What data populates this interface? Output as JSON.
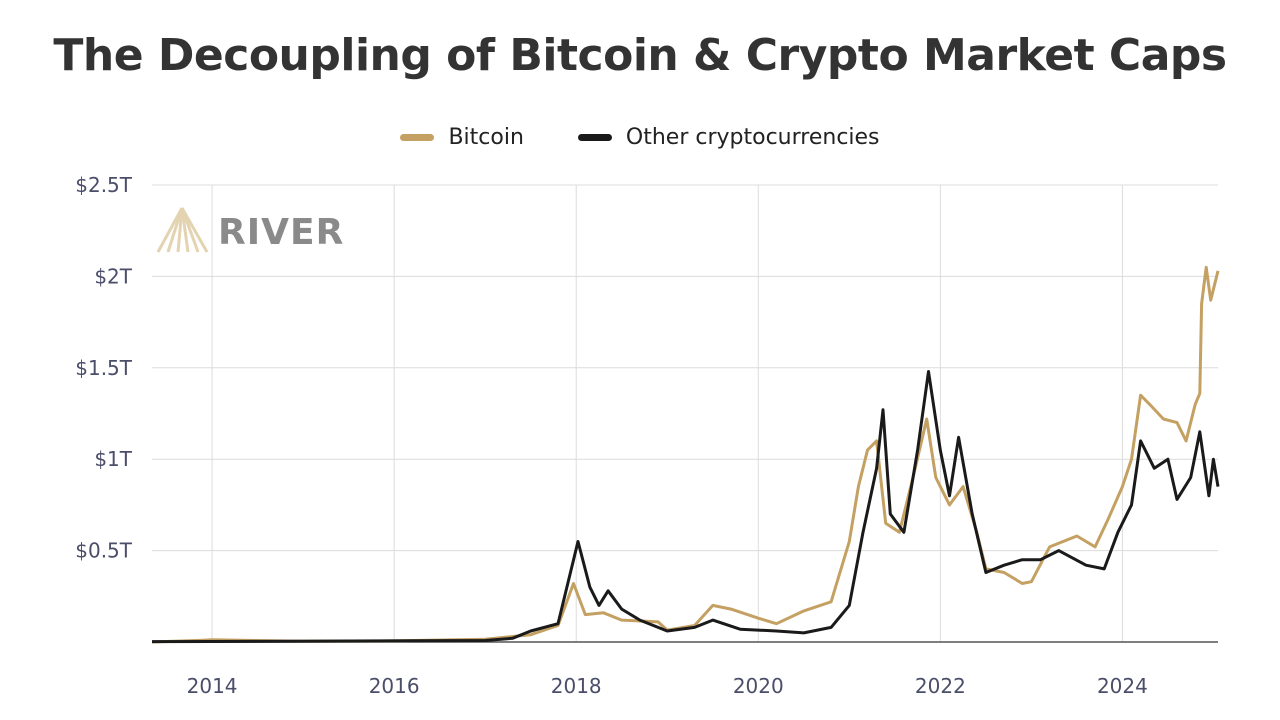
{
  "chart_data": {
    "type": "line",
    "title": "The Decoupling of Bitcoin & Crypto Market Caps",
    "xlabel": "",
    "ylabel": "",
    "xlim": [
      2013.34,
      2025.05
    ],
    "ylim": [
      0,
      2.5
    ],
    "grid": true,
    "legend_position": "top-center",
    "x_ticks": [
      2014,
      2016,
      2018,
      2020,
      2022,
      2024
    ],
    "x_tick_labels": [
      "2014",
      "2016",
      "2018",
      "2020",
      "2022",
      "2024"
    ],
    "y_ticks": [
      0.5,
      1,
      1.5,
      2,
      2.5
    ],
    "y_tick_labels": [
      "$0.5T",
      "$1T",
      "$1.5T",
      "$2T",
      "$2.5T"
    ],
    "watermark": "RIVER",
    "series": [
      {
        "name": "Bitcoin",
        "color": "#c4a062",
        "x": [
          2013.34,
          2013.9,
          2014.0,
          2015,
          2016,
          2017,
          2017.3,
          2017.5,
          2017.8,
          2017.97,
          2018.1,
          2018.3,
          2018.5,
          2018.9,
          2019.0,
          2019.3,
          2019.5,
          2019.7,
          2020.0,
          2020.2,
          2020.5,
          2020.8,
          2021.0,
          2021.1,
          2021.2,
          2021.3,
          2021.4,
          2021.55,
          2021.7,
          2021.85,
          2021.95,
          2022.1,
          2022.25,
          2022.4,
          2022.5,
          2022.7,
          2022.9,
          2023.0,
          2023.2,
          2023.5,
          2023.7,
          2023.85,
          2024.0,
          2024.1,
          2024.2,
          2024.3,
          2024.45,
          2024.6,
          2024.7,
          2024.8,
          2024.85,
          2024.87,
          2024.92,
          2024.97,
          2025.05
        ],
        "y": [
          0.0,
          0.01,
          0.012,
          0.004,
          0.006,
          0.015,
          0.03,
          0.04,
          0.09,
          0.32,
          0.15,
          0.16,
          0.12,
          0.11,
          0.065,
          0.09,
          0.2,
          0.18,
          0.13,
          0.1,
          0.17,
          0.22,
          0.55,
          0.85,
          1.05,
          1.1,
          0.65,
          0.6,
          0.9,
          1.22,
          0.9,
          0.75,
          0.85,
          0.6,
          0.4,
          0.38,
          0.32,
          0.33,
          0.52,
          0.58,
          0.52,
          0.68,
          0.85,
          1.0,
          1.35,
          1.3,
          1.22,
          1.2,
          1.1,
          1.3,
          1.36,
          1.85,
          2.05,
          1.87,
          2.03
        ]
      },
      {
        "name": "Other cryptocurrencies",
        "color": "#1a1a1a",
        "x": [
          2013.34,
          2014.0,
          2017,
          2017.3,
          2017.5,
          2017.8,
          2018.02,
          2018.15,
          2018.25,
          2018.35,
          2018.5,
          2018.7,
          2019.0,
          2019.3,
          2019.5,
          2019.8,
          2020.2,
          2020.5,
          2020.8,
          2021.0,
          2021.15,
          2021.3,
          2021.37,
          2021.45,
          2021.6,
          2021.75,
          2021.87,
          2022.0,
          2022.1,
          2022.2,
          2022.35,
          2022.5,
          2022.7,
          2022.9,
          2023.1,
          2023.3,
          2023.6,
          2023.8,
          2023.95,
          2024.1,
          2024.2,
          2024.35,
          2024.5,
          2024.6,
          2024.75,
          2024.85,
          2024.95,
          2025.0,
          2025.05
        ],
        "y": [
          0.002,
          0.003,
          0.008,
          0.02,
          0.06,
          0.1,
          0.55,
          0.3,
          0.2,
          0.28,
          0.18,
          0.12,
          0.06,
          0.08,
          0.12,
          0.07,
          0.06,
          0.05,
          0.08,
          0.2,
          0.6,
          0.95,
          1.27,
          0.7,
          0.6,
          1.05,
          1.48,
          1.05,
          0.8,
          1.12,
          0.7,
          0.38,
          0.42,
          0.45,
          0.45,
          0.5,
          0.42,
          0.4,
          0.6,
          0.75,
          1.1,
          0.95,
          1.0,
          0.78,
          0.9,
          1.15,
          0.8,
          1.0,
          0.85
        ]
      }
    ]
  }
}
